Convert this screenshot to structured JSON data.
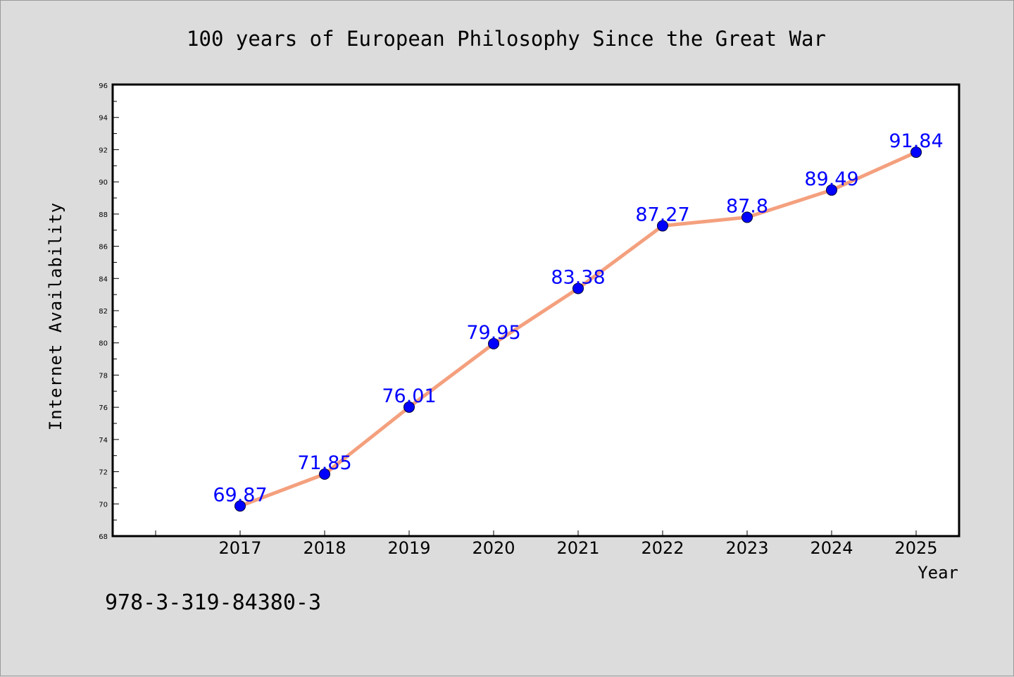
{
  "chart_data": {
    "type": "line",
    "title": "100 years of European Philosophy Since the Great War",
    "xlabel": "Year",
    "ylabel": "Internet Availability",
    "categories": [
      "2017",
      "2018",
      "2019",
      "2020",
      "2021",
      "2022",
      "2023",
      "2024",
      "2025"
    ],
    "series": [
      {
        "values": [
          69.87,
          71.85,
          76.01,
          79.95,
          83.38,
          87.27,
          87.8,
          89.49,
          91.84
        ],
        "labels": [
          "69.87",
          "71.85",
          "76.01",
          "79.95",
          "83.38",
          "87.27",
          "87.8",
          "89.49",
          "91.84"
        ]
      }
    ],
    "ylim": [
      68,
      96
    ],
    "yticks": [
      "68",
      "70",
      "72",
      "74",
      "76",
      "78",
      "80",
      "82",
      "84",
      "86",
      "88",
      "90",
      "92",
      "94",
      "96"
    ],
    "grid": false,
    "line_color": "#f4a07e",
    "marker_color": "#0000ff",
    "label_color": "#0000ff"
  },
  "footer": {
    "isbn": "978-3-319-84380-3"
  }
}
